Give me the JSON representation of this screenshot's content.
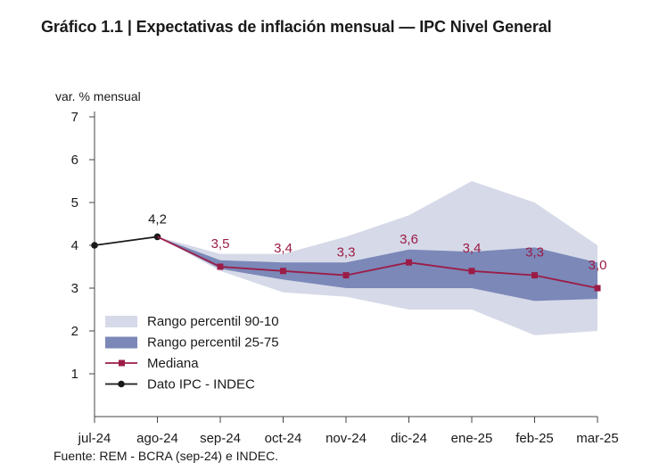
{
  "title": "Gráfico 1.1 | Expectativas de inflación mensual — IPC Nivel General",
  "source": "Fuente: REM - BCRA (sep-24) e INDEC.",
  "chart_data": {
    "type": "line",
    "ylabel": "var. % mensual",
    "ylim": [
      0,
      7
    ],
    "yticks": [
      "1",
      "2",
      "3",
      "4",
      "5",
      "6",
      "7"
    ],
    "categories": [
      "jul-24",
      "ago-24",
      "sep-24",
      "oct-24",
      "nov-24",
      "dic-24",
      "ene-25",
      "feb-25",
      "mar-25"
    ],
    "legend_position": "bottom-left",
    "grid": false,
    "series": [
      {
        "name": "Dato IPC - INDEC",
        "color": "#1a1a1a",
        "values": [
          4.0,
          4.2,
          null,
          null,
          null,
          null,
          null,
          null,
          null
        ],
        "labels": [
          null,
          "4,2",
          null,
          null,
          null,
          null,
          null,
          null,
          null
        ]
      },
      {
        "name": "Mediana",
        "color": "#9b1c46",
        "values": [
          null,
          4.2,
          3.5,
          3.4,
          3.3,
          3.6,
          3.4,
          3.3,
          3.0
        ],
        "labels": [
          null,
          null,
          "3,5",
          "3,4",
          "3,3",
          "3,6",
          "3,4",
          "3,3",
          "3,0"
        ]
      }
    ],
    "bands": [
      {
        "name": "Rango percentil 90-10",
        "color": "#d6d9e8",
        "lower": [
          null,
          4.2,
          3.4,
          2.9,
          2.8,
          2.5,
          2.5,
          1.9,
          2.0
        ],
        "upper": [
          null,
          4.2,
          3.8,
          3.8,
          4.2,
          4.7,
          5.5,
          5.0,
          4.0
        ]
      },
      {
        "name": "Rango percentil 25-75",
        "color": "#7b88b8",
        "lower": [
          null,
          4.2,
          3.45,
          3.2,
          3.0,
          3.0,
          3.0,
          2.7,
          2.75
        ],
        "upper": [
          null,
          4.2,
          3.65,
          3.6,
          3.6,
          3.9,
          3.85,
          3.95,
          3.6
        ]
      }
    ]
  }
}
